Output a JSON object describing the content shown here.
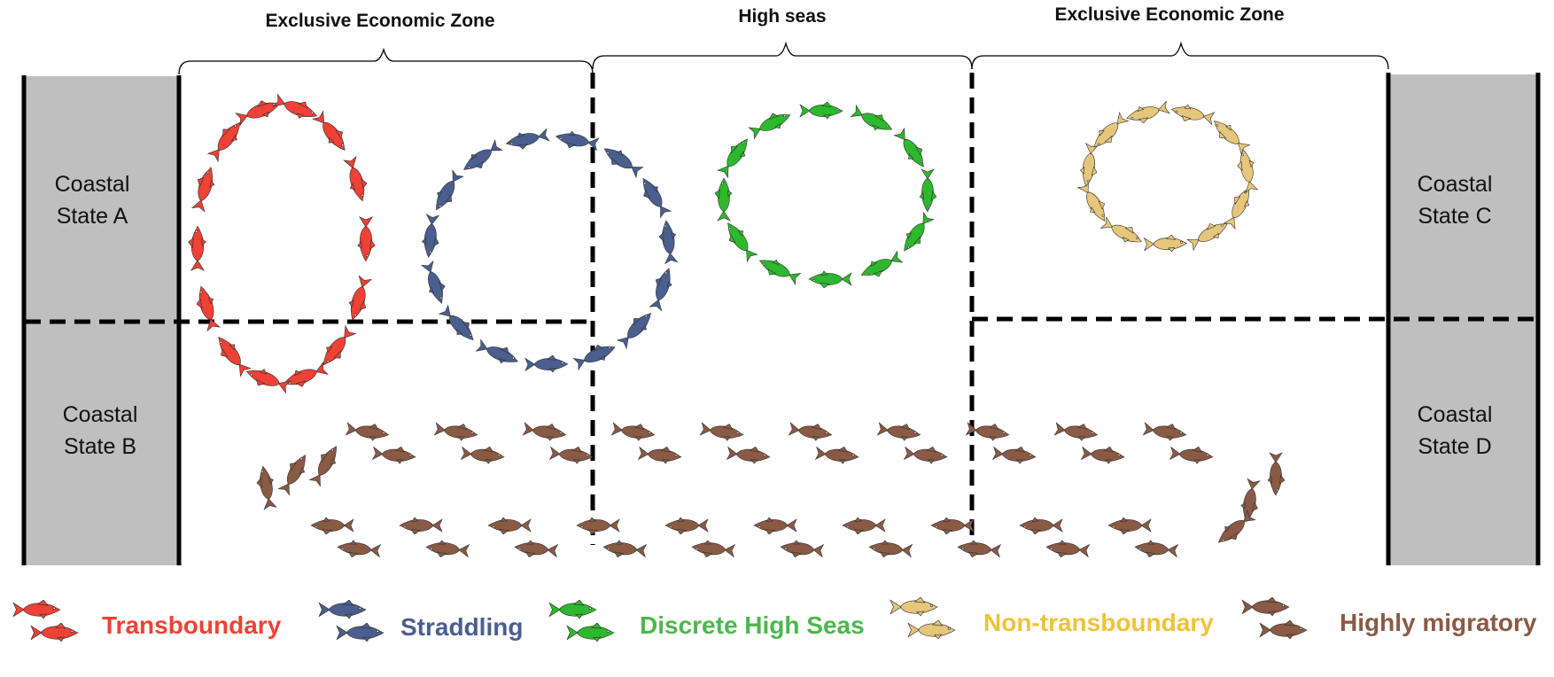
{
  "zones": {
    "left_eez": "Exclusive Economic Zone",
    "high_seas": "High seas",
    "right_eez": "Exclusive Economic Zone"
  },
  "states": {
    "a": [
      "Coastal",
      "State A"
    ],
    "b": [
      "Coastal",
      "State B"
    ],
    "c": [
      "Coastal",
      "State C"
    ],
    "d": [
      "Coastal",
      "State D"
    ]
  },
  "legend": [
    {
      "label": "Transboundary",
      "color": "#ef4135"
    },
    {
      "label": "Straddling",
      "color": "#4a5f8f"
    },
    {
      "label": "Discrete High Seas",
      "color": "#2db82d"
    },
    {
      "label": "Non-transboundary",
      "color": "#e6c67a"
    },
    {
      "label": "Highly migratory",
      "color": "#8a5a44"
    }
  ],
  "colors": {
    "transboundary": "#ef4135",
    "straddling": "#4a5f8f",
    "discrete_high_seas": "#2db82d",
    "non_transboundary": "#e6c67a",
    "highly_migratory": "#8a5a44",
    "land": "#bfbfbf",
    "line": "#000000"
  },
  "icons": {
    "fish": "fish-icon"
  }
}
